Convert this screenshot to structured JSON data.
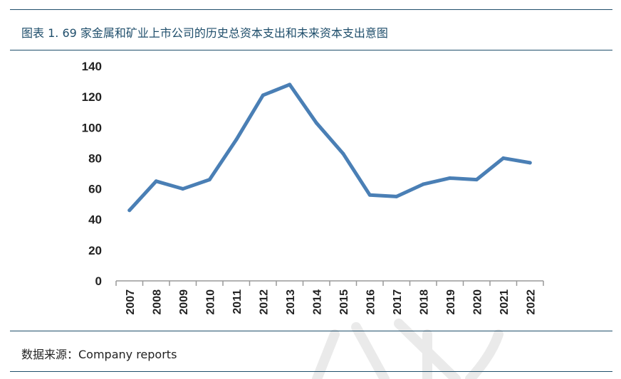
{
  "header": {
    "title": "图表 1. 69 家金属和矿业上市公司的历史总资本支出和未来资本支出意图"
  },
  "footer": {
    "source": "数据来源：Company reports"
  },
  "chart_data": {
    "type": "line",
    "title": "",
    "xlabel": "",
    "ylabel": "",
    "x": [
      "2007",
      "2008",
      "2009",
      "2010",
      "2011",
      "2012",
      "2013",
      "2014",
      "2015",
      "2016",
      "2017",
      "2018",
      "2019",
      "2020",
      "2021",
      "2022"
    ],
    "series": [
      {
        "values": [
          46,
          65,
          60,
          66,
          92,
          121,
          128,
          103,
          83,
          56,
          55,
          63,
          67,
          66,
          80,
          77
        ]
      }
    ],
    "ylim": [
      0,
      140
    ],
    "yticks": [
      0,
      20,
      40,
      60,
      80,
      100,
      120,
      140
    ],
    "grid": false,
    "legend": "none",
    "colors": {
      "line": "#4a7fb5",
      "axis": "#999999"
    }
  }
}
